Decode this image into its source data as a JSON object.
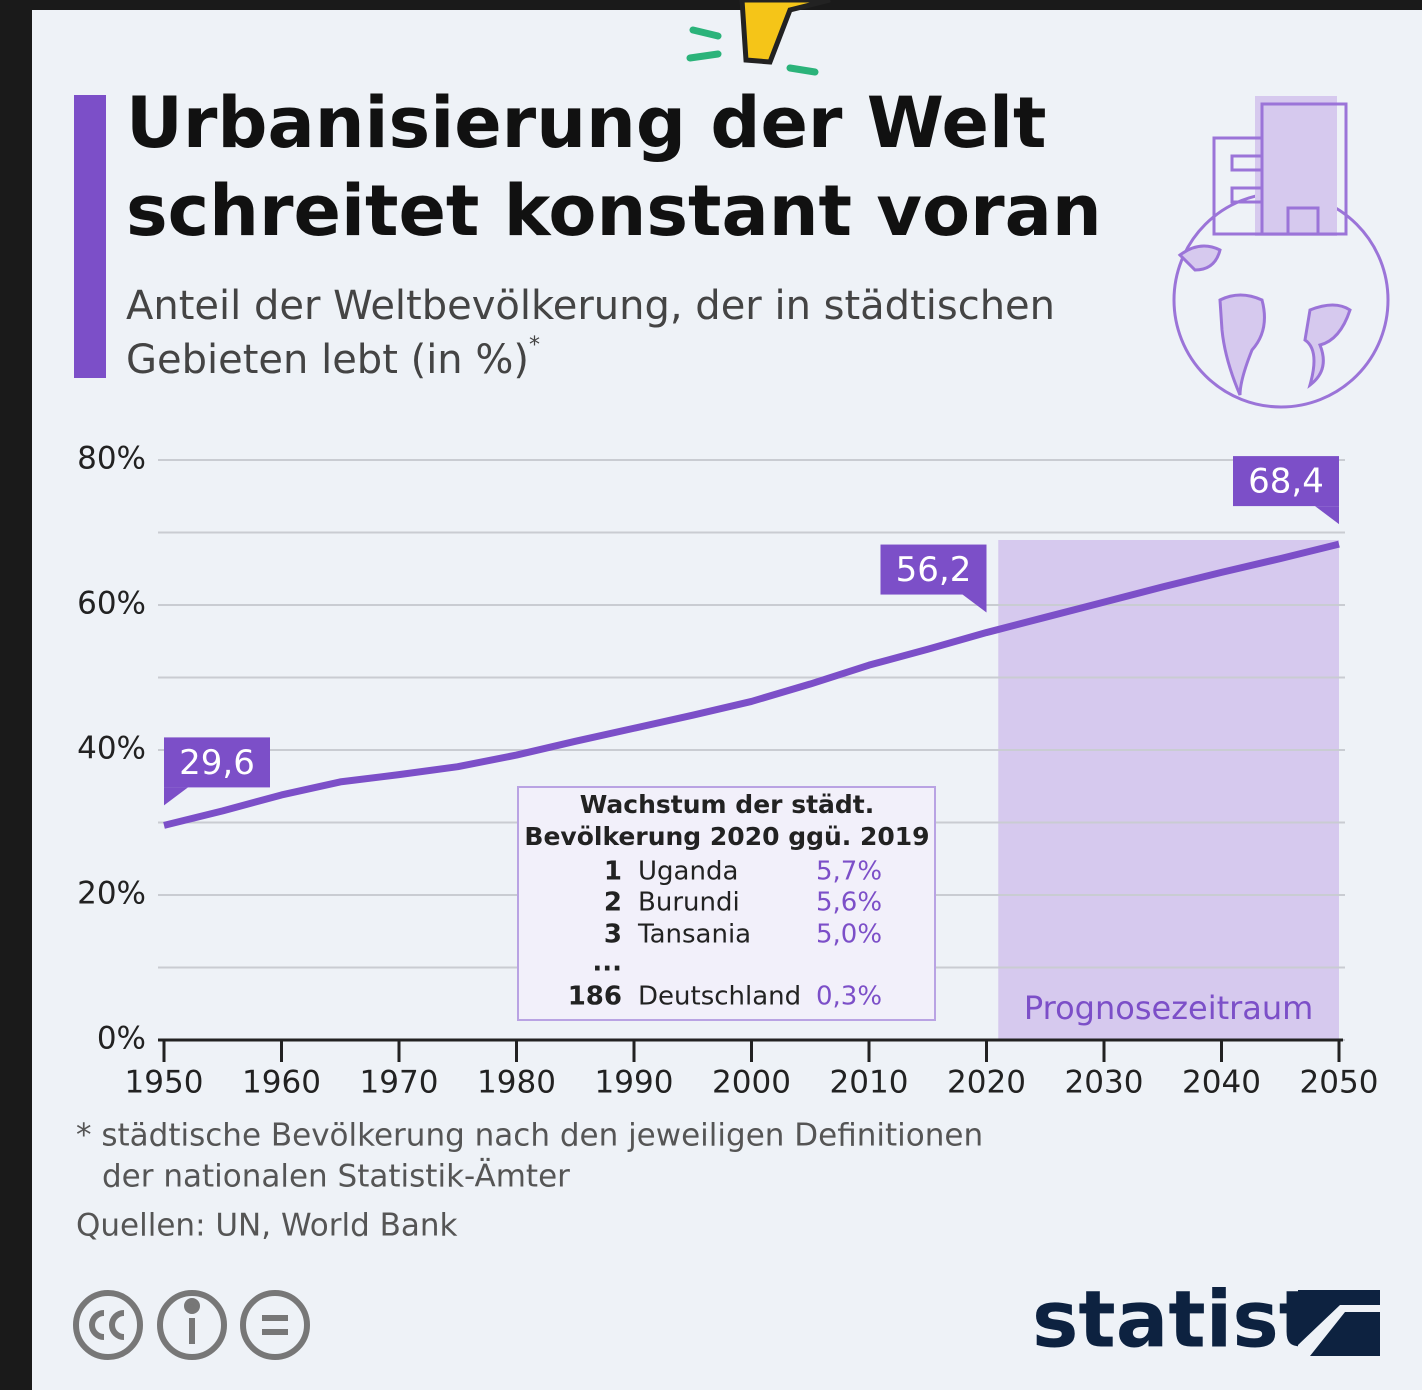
{
  "chart_data": {
    "type": "line",
    "title": [
      "Urbanisierung der Welt",
      "schreitet konstant voran"
    ],
    "subtitle": [
      "Anteil der Weltbevölkerung, der in städtischen",
      "Gebieten lebt (in %)"
    ],
    "subtitle_mark": "*",
    "x": [
      1950,
      1955,
      1960,
      1965,
      1970,
      1975,
      1980,
      1985,
      1990,
      1995,
      2000,
      2005,
      2010,
      2015,
      2020,
      2025,
      2030,
      2035,
      2040,
      2045,
      2050
    ],
    "values": [
      29.6,
      31.6,
      33.8,
      35.6,
      36.6,
      37.7,
      39.3,
      41.2,
      43.0,
      44.8,
      46.7,
      49.1,
      51.7,
      53.9,
      56.2,
      58.3,
      60.4,
      62.5,
      64.5,
      66.4,
      68.4
    ],
    "value_labels": [
      "29,6",
      null,
      null,
      null,
      null,
      null,
      null,
      null,
      null,
      null,
      null,
      null,
      null,
      null,
      "56,2",
      null,
      null,
      null,
      null,
      null,
      "68,4"
    ],
    "color": "#7c4fc8",
    "xlim": [
      1950,
      2050
    ],
    "xticks": [
      1950,
      1960,
      1970,
      1980,
      1990,
      2000,
      2010,
      2020,
      2030,
      2040,
      2050
    ],
    "ylim": [
      0,
      80
    ],
    "yticks": [
      {
        "value": 0,
        "label": "0%"
      },
      {
        "value": 10,
        "label": null
      },
      {
        "value": 20,
        "label": "20%"
      },
      {
        "value": 30,
        "label": null
      },
      {
        "value": 40,
        "label": "40%"
      },
      {
        "value": 50,
        "label": null
      },
      {
        "value": 60,
        "label": "60%"
      },
      {
        "value": 70,
        "label": null
      },
      {
        "value": 80,
        "label": "80%"
      }
    ],
    "grid": true,
    "forecast": {
      "from": 2021,
      "to": 2050,
      "label": "Prognosezeitraum",
      "color": "#d6c9ee"
    },
    "inset": {
      "title": [
        "Wachstum der städt.",
        "Bevölkerung 2020 ggü. 2019"
      ],
      "rows": [
        [
          "1",
          "Uganda",
          "5,7%"
        ],
        [
          "2",
          "Burundi",
          "5,6%"
        ],
        [
          "3",
          "Tansania",
          "5,0%"
        ],
        [
          "...",
          null,
          null
        ],
        [
          "186",
          "Deutschland",
          "0,3%"
        ]
      ]
    },
    "footnote": [
      "* städtische Bevölkerung nach den jeweiligen Definitionen",
      "der nationalen Statistik-Ämter"
    ],
    "source": "Quellen: UN, World Bank",
    "brand": "statista"
  }
}
